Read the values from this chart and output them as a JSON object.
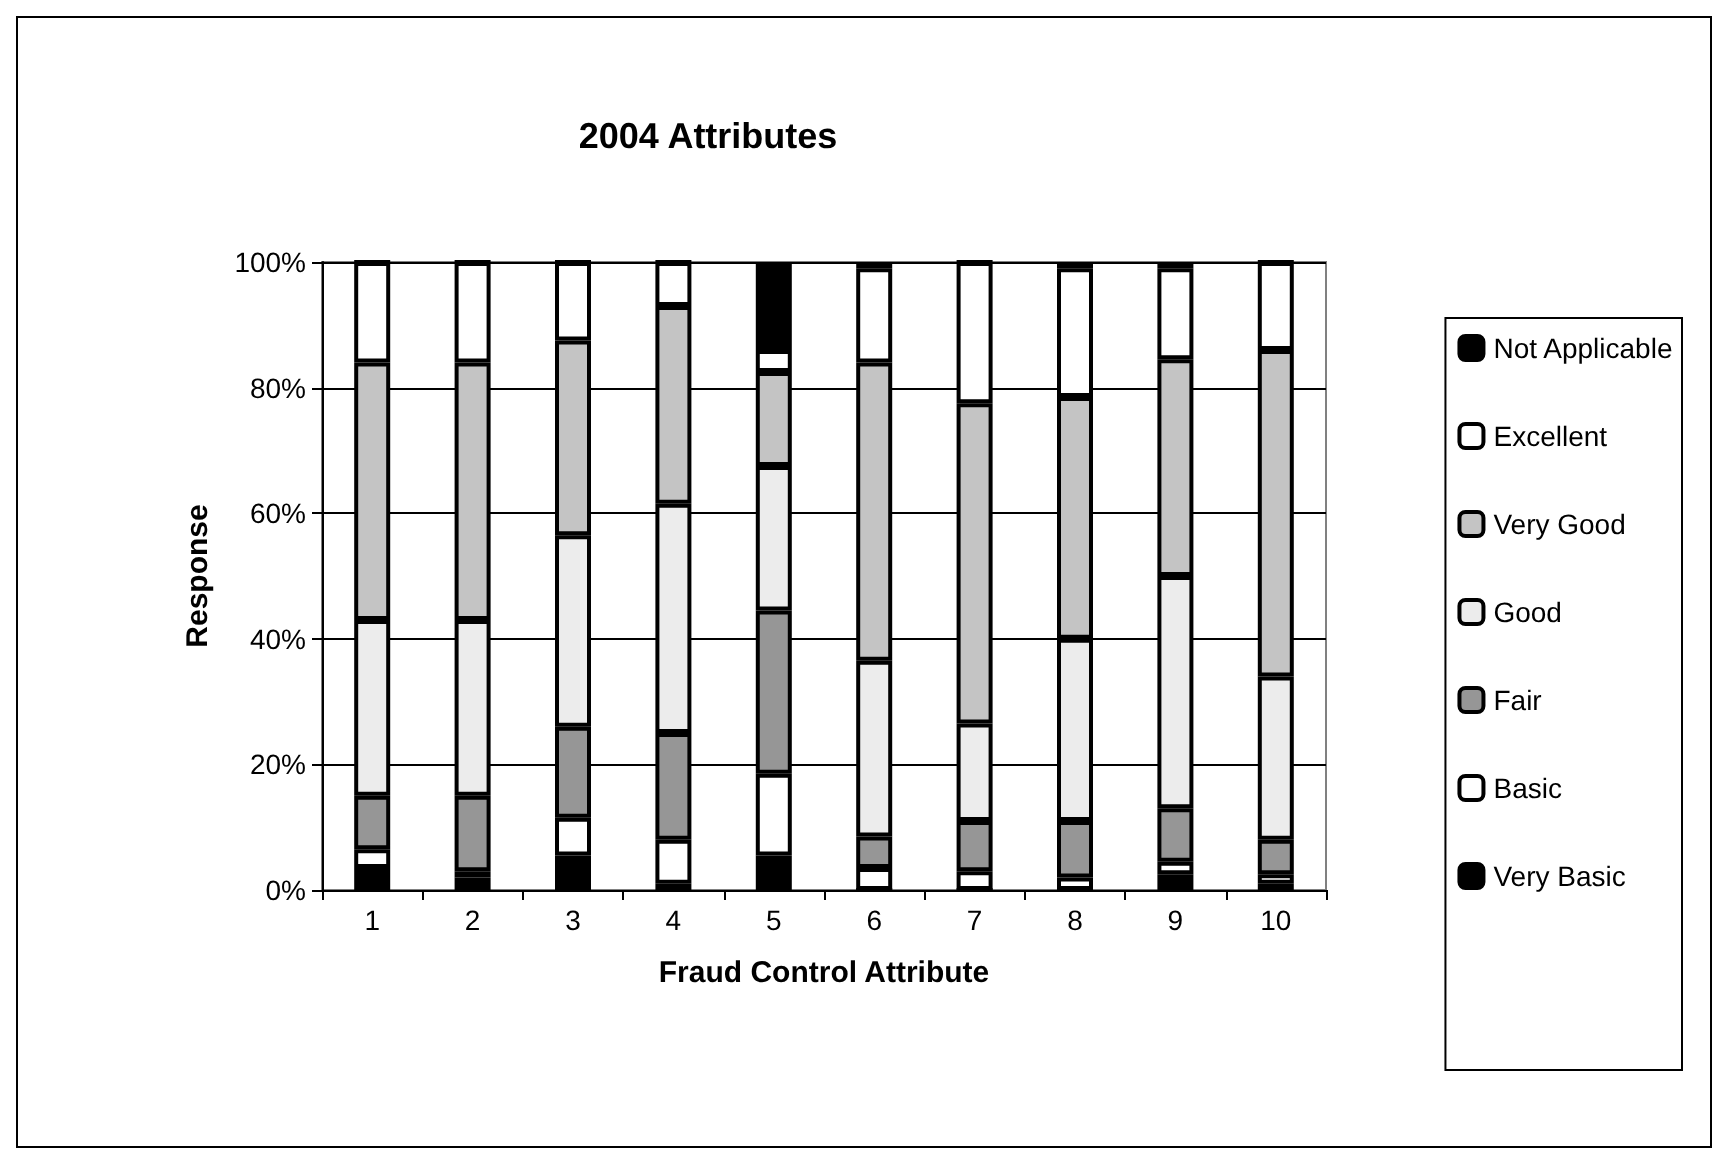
{
  "chart_data": {
    "type": "bar",
    "title": "2004 Attributes",
    "xlabel": "Fraud Control Attribute",
    "ylabel": "Response",
    "categories": [
      "1",
      "2",
      "3",
      "4",
      "5",
      "6",
      "7",
      "8",
      "9",
      "10"
    ],
    "stacked": true,
    "ylim": [
      0,
      100
    ],
    "yticks": [
      {
        "value": 0,
        "label": "0%"
      },
      {
        "value": 20,
        "label": "20%"
      },
      {
        "value": 40,
        "label": "40%"
      },
      {
        "value": 60,
        "label": "60%"
      },
      {
        "value": 80,
        "label": "80%"
      },
      {
        "value": 100,
        "label": "100%"
      }
    ],
    "grid": "y",
    "legend": "right",
    "series": [
      {
        "name": "Very Basic",
        "color": "#000000",
        "values": [
          3.5,
          2,
          5.5,
          1,
          5.5,
          0,
          0,
          0,
          2.5,
          1
        ]
      },
      {
        "name": "Basic",
        "color": "#ffffff",
        "values": [
          3,
          1,
          6,
          7,
          13,
          3.5,
          3,
          2,
          2,
          1.5
        ]
      },
      {
        "name": "Fair",
        "color": "#969696",
        "values": [
          8.5,
          12,
          14.5,
          17,
          26,
          5,
          8,
          9,
          8.5,
          5.5
        ]
      },
      {
        "name": "Good",
        "color": "#ececec",
        "values": [
          28,
          28,
          30.5,
          36.5,
          23,
          28,
          15.5,
          29,
          37,
          26
        ]
      },
      {
        "name": "Very Good",
        "color": "#c4c4c4",
        "values": [
          41,
          41,
          31,
          31.5,
          15,
          47.5,
          51,
          38.5,
          34.5,
          52
        ]
      },
      {
        "name": "Excellent",
        "color": "#ffffff",
        "values": [
          16,
          16,
          12.5,
          7,
          3.5,
          15,
          22.5,
          20.5,
          14.5,
          14
        ]
      },
      {
        "name": "Not Applicable",
        "color": "#000000",
        "values": [
          0,
          0,
          0,
          0,
          14,
          1,
          0,
          1,
          1,
          0
        ]
      }
    ]
  }
}
